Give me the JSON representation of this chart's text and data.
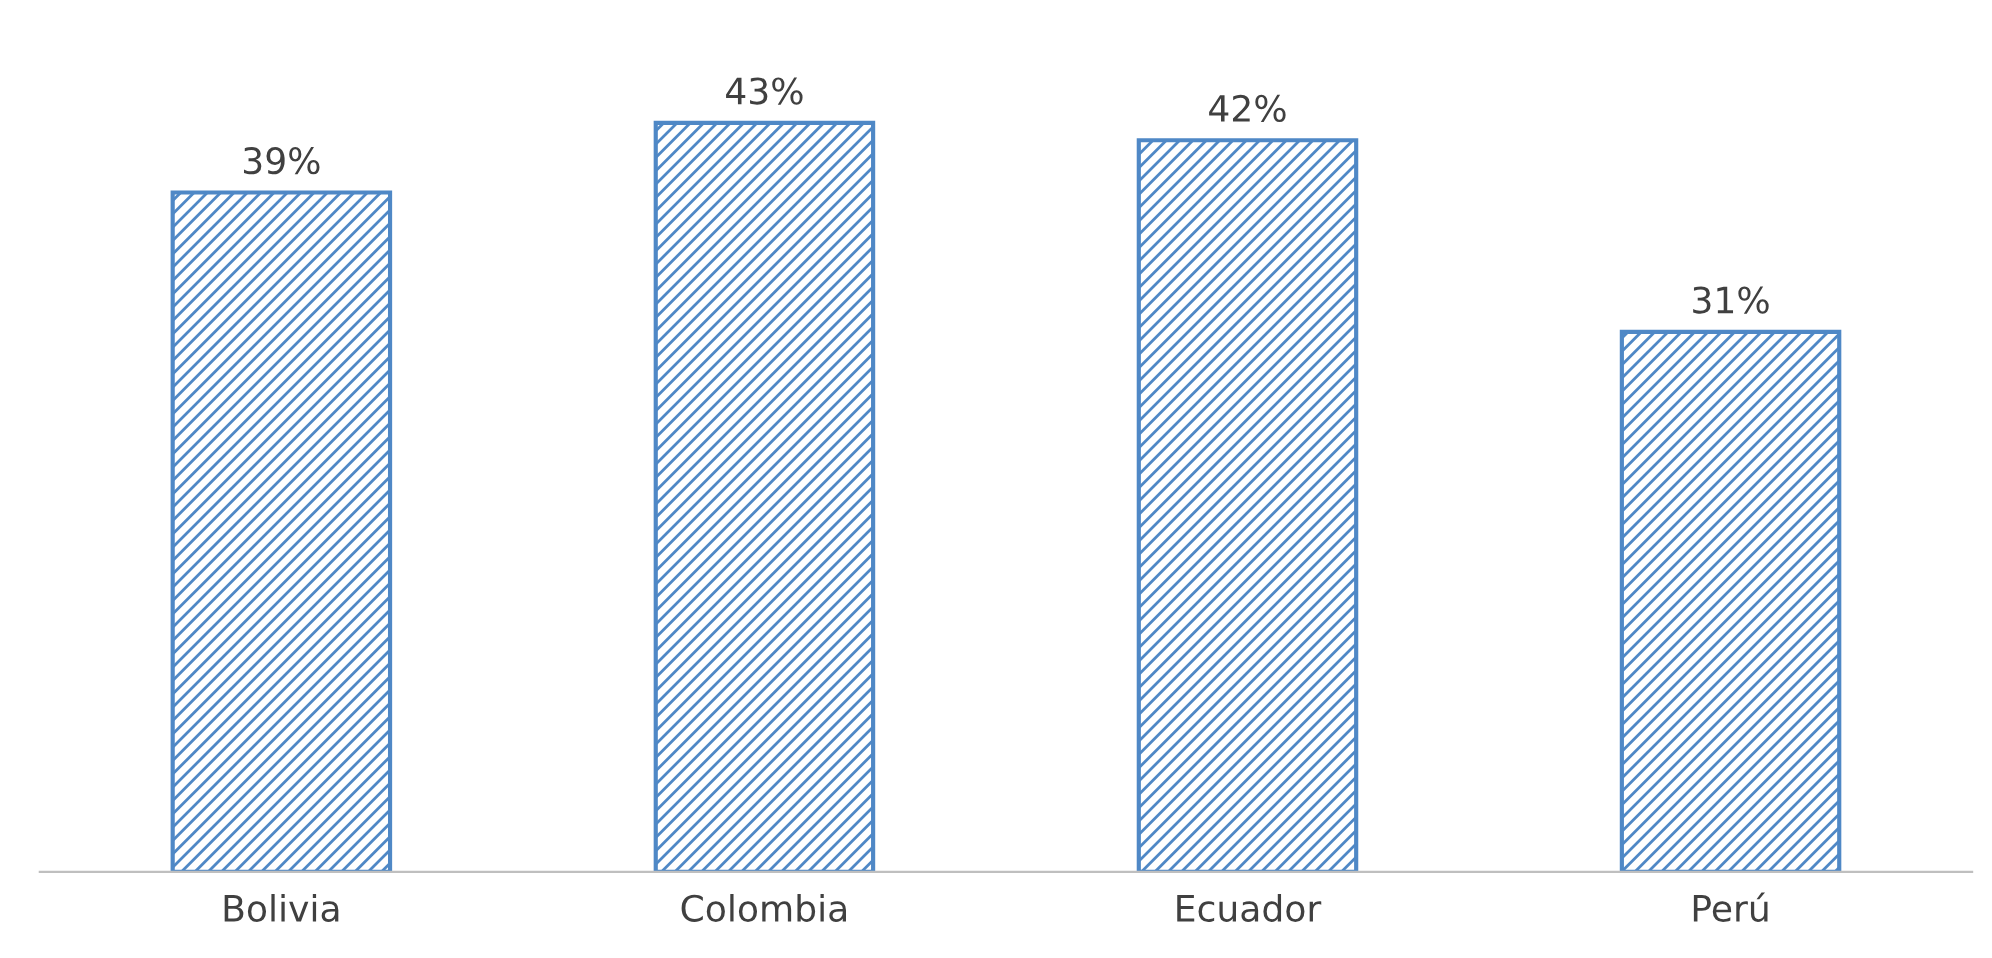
{
  "chart_data": {
    "type": "bar",
    "categories": [
      "Bolivia",
      "Colombia",
      "Ecuador",
      "Perú"
    ],
    "values": [
      39,
      43,
      42,
      31
    ],
    "value_labels": [
      "39%",
      "43%",
      "42%",
      "31%"
    ],
    "color": "#4f88c6",
    "grid": false,
    "legend": false
  }
}
